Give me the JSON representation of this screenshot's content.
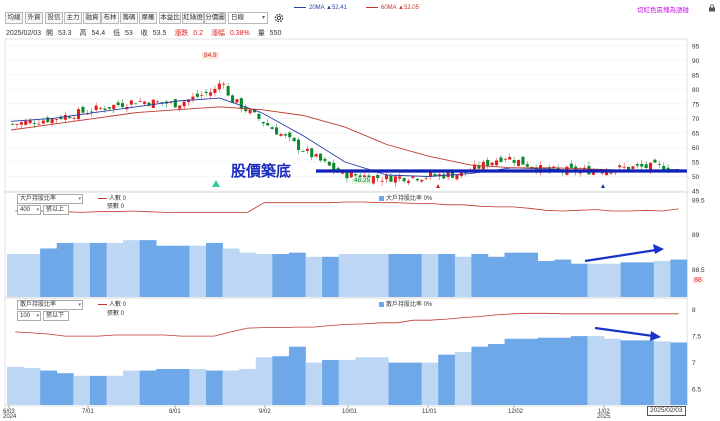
{
  "toolbar": {
    "items": [
      "均線",
      "外資",
      "投信",
      "主力",
      "融資",
      "布林",
      "籌碼",
      "摩羅",
      "本益比",
      "紅綠燈",
      "分價圖"
    ],
    "period": "日線"
  },
  "legend": {
    "ma20": "20MA ▲52.41",
    "ma60": "60MA ▲52.05",
    "ma20_color": "#2a3fa8",
    "ma60_color": "#c0392b",
    "link": "切紅色區塊為漲碰"
  },
  "quote": {
    "date": "2025/02/03",
    "open_label": "開",
    "open": "53.3",
    "high_label": "高",
    "high": "54.4",
    "low_label": "低",
    "low": "53",
    "close_label": "收",
    "close": "53.5",
    "change_label": "漲跌",
    "change": "0.2",
    "pct_label": "漲幅",
    "pct": "0.38%",
    "vol_label": "量",
    "vol": "550"
  },
  "annotations": {
    "high_label": "84.9",
    "low_label": "48.25",
    "bottom_text": "股價築底"
  },
  "colors": {
    "up": "#e02020",
    "down": "#0a8a2a",
    "bar_dark": "#6fa8e8",
    "bar_light": "#bcd6f3",
    "arrow": "#1733c9",
    "support": "#1022b5"
  },
  "panel1": {
    "select": "大戶持股比率",
    "threshold": "400",
    "scope": "張以上",
    "legend_person": "人數 0",
    "legend_shares": "張數 0",
    "legend_ratio": "大戶持股比率 0%",
    "red_flag": "88"
  },
  "panel2": {
    "select": "散戶持股比率",
    "threshold": "100",
    "scope": "張以下",
    "legend_person": "人數 0",
    "legend_shares": "張數 0",
    "legend_ratio": "散戶持股比率 0%"
  },
  "axes": {
    "price_ticks": [
      "95",
      "90",
      "85",
      "80",
      "75",
      "70",
      "65",
      "60",
      "55",
      "50",
      "45"
    ],
    "p1_ticks": [
      "89.5",
      "89",
      "88.5"
    ],
    "p2_ticks": [
      "8",
      "7.5",
      "7",
      "6.5"
    ],
    "x_ticks": [
      "6/03",
      "7/01",
      "8/01",
      "9/02",
      "10/01",
      "11/01",
      "12/02",
      "1/02",
      "2025/02/03"
    ],
    "x_years": [
      "2024",
      "2025"
    ]
  },
  "chart_data": [
    {
      "type": "line",
      "title": "",
      "x": [
        "6/03",
        "6/17",
        "7/01",
        "7/15",
        "8/01",
        "8/15",
        "9/02",
        "9/16",
        "10/01",
        "10/15",
        "11/01",
        "11/15",
        "12/02",
        "12/16",
        "1/02",
        "1/16",
        "2/03"
      ],
      "series": [
        {
          "name": "20MA",
          "values": [
            69,
            70,
            72,
            74,
            76,
            77,
            72,
            64,
            55,
            50.5,
            50,
            51,
            53,
            52.5,
            51.5,
            52,
            52.4
          ]
        },
        {
          "name": "60MA",
          "values": [
            66,
            68,
            70,
            72,
            73,
            74,
            73,
            71,
            67,
            61,
            57,
            54,
            53,
            53,
            52.5,
            52,
            52.05
          ]
        }
      ],
      "close": [
        68,
        70,
        73,
        76,
        75,
        80,
        70,
        60,
        51,
        49.5,
        50,
        51,
        57,
        52,
        52,
        53,
        53.5
      ],
      "ylim": [
        45,
        97
      ],
      "high": 84.9,
      "low": 48.25
    },
    {
      "type": "bar",
      "title": "大戶持股比率",
      "values": [
        88.72,
        88.72,
        88.8,
        88.88,
        88.88,
        88.88,
        88.88,
        88.92,
        88.92,
        88.84,
        88.84,
        88.84,
        88.88,
        88.8,
        88.74,
        88.72,
        88.72,
        88.74,
        88.68,
        88.68,
        88.72,
        88.72,
        88.72,
        88.72,
        88.72,
        88.72,
        88.72,
        88.68,
        88.72,
        88.68,
        88.74,
        88.74,
        88.62,
        88.64,
        88.58,
        88.58,
        88.58,
        88.6,
        88.6,
        88.62,
        88.64
      ],
      "persons_line": [
        89.34,
        89.34,
        89.34,
        89.33,
        89.32,
        89.33,
        89.33,
        89.34,
        89.33,
        89.32,
        89.32,
        89.32,
        89.32,
        89.32,
        89.32,
        89.46,
        89.46,
        89.46,
        89.46,
        89.46,
        89.47,
        89.47,
        89.46,
        89.46,
        89.45,
        89.45,
        89.43,
        89.43,
        89.41,
        89.4,
        89.4,
        89.38,
        89.35,
        89.34,
        89.35,
        89.36,
        89.34,
        89.34,
        89.35,
        89.34,
        89.37
      ],
      "ylim": [
        88.1,
        89.6
      ]
    },
    {
      "type": "bar",
      "title": "散戶持股比率",
      "values": [
        6.92,
        6.9,
        6.85,
        6.8,
        6.75,
        6.75,
        6.75,
        6.85,
        6.85,
        6.88,
        6.88,
        6.88,
        6.85,
        6.85,
        6.88,
        7.1,
        7.12,
        7.3,
        7.0,
        7.05,
        7.05,
        7.1,
        7.1,
        7.0,
        7.0,
        7.0,
        7.15,
        7.2,
        7.3,
        7.35,
        7.45,
        7.45,
        7.47,
        7.47,
        7.5,
        7.5,
        7.45,
        7.42,
        7.42,
        7.4,
        7.38
      ],
      "persons_line": [
        7.58,
        7.56,
        7.54,
        7.5,
        7.5,
        7.5,
        7.52,
        7.52,
        7.52,
        7.52,
        7.5,
        7.5,
        7.5,
        7.58,
        7.65,
        7.66,
        7.66,
        7.67,
        7.67,
        7.7,
        7.72,
        7.73,
        7.75,
        7.75,
        7.8,
        7.8,
        7.82,
        7.85,
        7.87,
        7.9,
        7.92,
        7.93,
        7.93,
        7.92,
        7.92,
        7.92,
        7.92,
        7.92,
        7.92,
        7.92,
        7.92
      ],
      "ylim": [
        6.2,
        8.2
      ]
    }
  ]
}
